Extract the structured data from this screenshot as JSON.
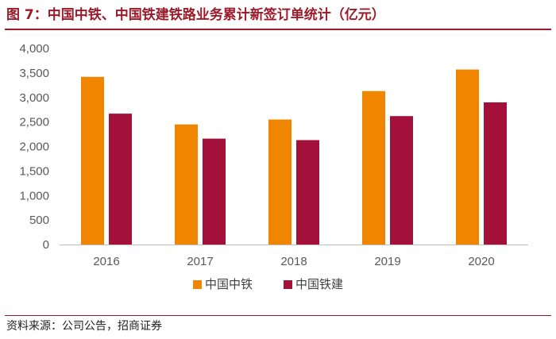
{
  "title": "图 7：中国中铁、中国铁建铁路业务累计新签订单统计（亿元）",
  "source": "资料来源：公司公告，招商证券",
  "colors": {
    "accent": "#9b1b2a",
    "series1": "#f08500",
    "series2": "#a3103a"
  },
  "chart_data": {
    "type": "bar",
    "categories": [
      "2016",
      "2017",
      "2018",
      "2019",
      "2020"
    ],
    "series": [
      {
        "name": "中国中铁",
        "values": [
          3420,
          2450,
          2550,
          3130,
          3570
        ]
      },
      {
        "name": "中国铁建",
        "values": [
          2670,
          2160,
          2130,
          2620,
          2900
        ]
      }
    ],
    "yticks": [
      "0",
      "500",
      "1,000",
      "1,500",
      "2,000",
      "2,500",
      "3,000",
      "3,500",
      "4,000"
    ],
    "ylim": [
      0,
      4000
    ],
    "grid": false,
    "legend_position": "bottom-center"
  }
}
